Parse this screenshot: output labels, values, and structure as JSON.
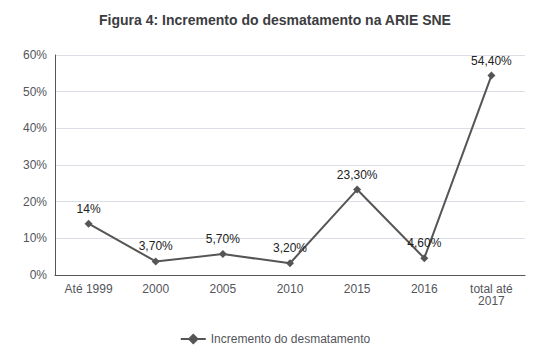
{
  "chart_data": {
    "type": "line",
    "title": "Figura 4: Incremento do desmatamento na ARIE SNE",
    "categories": [
      "Até 1999",
      "2000",
      "2005",
      "2010",
      "2015",
      "2016",
      "total até\n2017"
    ],
    "series": [
      {
        "name": "Incremento do desmatamento",
        "color": "#555555",
        "marker": "diamond",
        "values": [
          14.0,
          3.7,
          5.7,
          3.2,
          23.3,
          4.6,
          54.4
        ],
        "value_labels": [
          "14%",
          "3,70%",
          "5,70%",
          "3,20%",
          "23,30%",
          "4,60%",
          "54,40%"
        ]
      }
    ],
    "ylim": [
      0,
      60
    ],
    "yticks": [
      {
        "value": 0,
        "label": "0%"
      },
      {
        "value": 10,
        "label": "10%"
      },
      {
        "value": 20,
        "label": "20%"
      },
      {
        "value": 30,
        "label": "30%"
      },
      {
        "value": 40,
        "label": "40%"
      },
      {
        "value": 50,
        "label": "50%"
      },
      {
        "value": 60,
        "label": "60%"
      }
    ],
    "grid": true,
    "legend": "bottom",
    "data_labels": true
  }
}
